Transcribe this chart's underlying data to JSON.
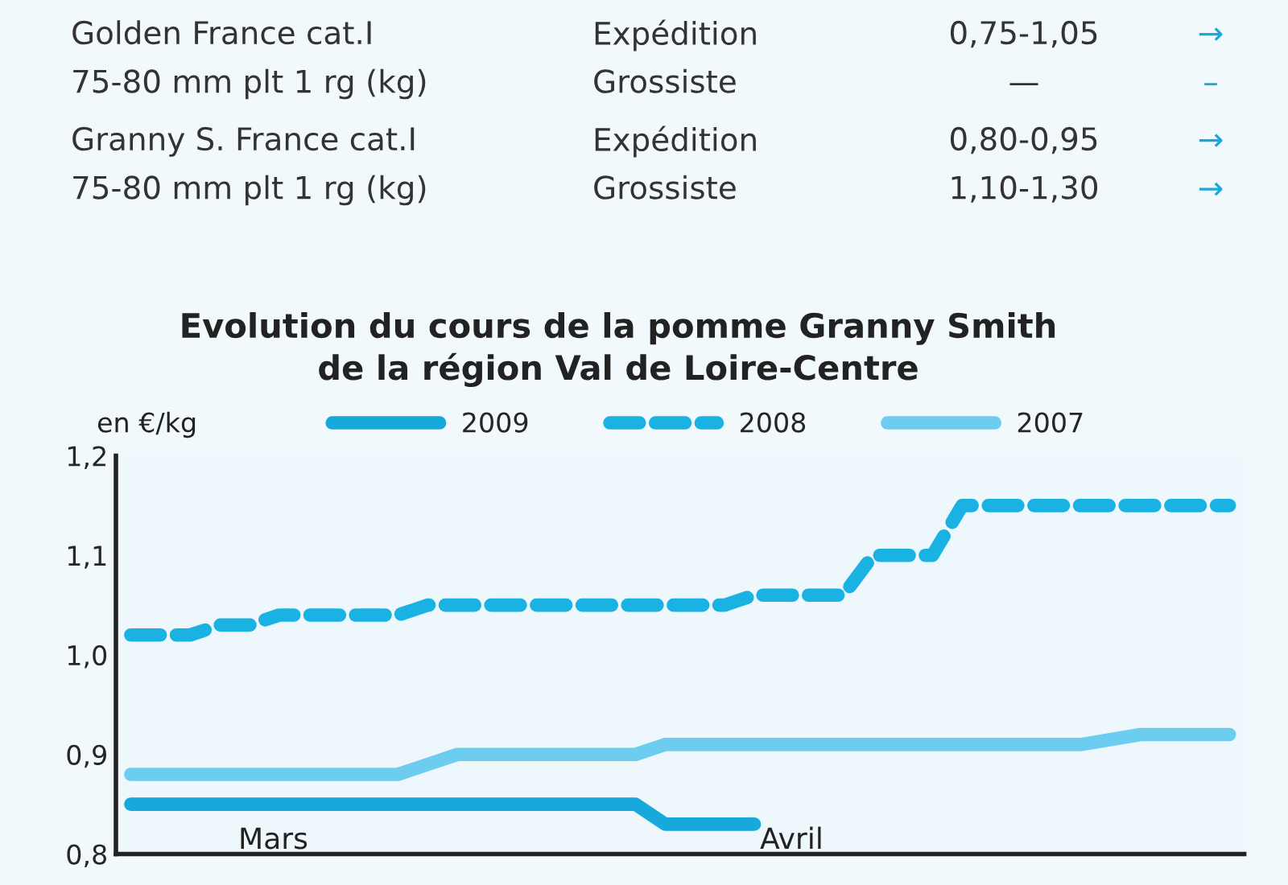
{
  "chart_data": {
    "type": "line",
    "title": "Evolution du cours de la pomme Granny Smith\nde la région Val de Loire-Centre",
    "ylabel": "en €/kg",
    "categories": [
      null,
      null,
      null,
      null,
      null,
      null,
      null,
      null,
      null,
      null,
      null,
      null,
      null,
      null,
      null,
      null,
      null,
      null,
      null,
      null,
      null,
      null,
      null,
      null,
      null,
      null,
      null,
      null,
      null,
      null,
      null,
      null,
      null,
      null,
      null,
      null,
      null,
      null
    ],
    "series": [
      {
        "name": "2009",
        "color": "#17a8dc",
        "line_style": "solid",
        "values": [
          0.85,
          0.85,
          0.85,
          0.85,
          0.85,
          0.85,
          0.85,
          0.85,
          0.85,
          0.85,
          0.85,
          0.85,
          0.85,
          0.85,
          0.85,
          0.85,
          0.85,
          0.85,
          0.83,
          0.83,
          0.83,
          0.83,
          null,
          null,
          null,
          null,
          null,
          null,
          null,
          null,
          null,
          null,
          null,
          null,
          null,
          null,
          null,
          null
        ]
      },
      {
        "name": "2008",
        "color": "#1ab2e2",
        "line_style": "dashed",
        "values": [
          1.02,
          1.02,
          1.02,
          1.03,
          1.03,
          1.04,
          1.04,
          1.04,
          1.04,
          1.04,
          1.05,
          1.05,
          1.05,
          1.05,
          1.05,
          1.05,
          1.05,
          1.05,
          1.05,
          1.05,
          1.05,
          1.06,
          1.06,
          1.06,
          1.06,
          1.1,
          1.1,
          1.1,
          1.15,
          1.15,
          1.15,
          1.15,
          1.15,
          1.15,
          1.15,
          1.15,
          1.15,
          1.15
        ]
      },
      {
        "name": "2007",
        "color": "#6dcdf0",
        "line_style": "solid",
        "values": [
          0.88,
          0.88,
          0.88,
          0.88,
          0.88,
          0.88,
          0.88,
          0.88,
          0.88,
          0.88,
          0.89,
          0.9,
          0.9,
          0.9,
          0.9,
          0.9,
          0.9,
          0.9,
          0.91,
          0.91,
          0.91,
          0.91,
          0.91,
          0.91,
          0.91,
          0.91,
          0.91,
          0.91,
          0.91,
          0.91,
          0.91,
          0.91,
          0.91,
          0.915,
          0.92,
          0.92,
          0.92,
          0.92
        ]
      }
    ],
    "ylim": [
      0.8,
      1.2
    ],
    "yticks": [
      {
        "value": 0.8,
        "label": "0,8"
      },
      {
        "value": 0.9,
        "label": "0,9"
      },
      {
        "value": 1.0,
        "label": "1,0"
      },
      {
        "value": 1.1,
        "label": "1,1"
      },
      {
        "value": 1.2,
        "label": "1,2"
      }
    ],
    "tick_labels": "y",
    "legend": "top",
    "grid": false,
    "annotations": [
      "Golden France cat.I",
      "Expédition",
      "0,75-1,05",
      "→",
      "75-80 mm plt 1 rg (kg)",
      "Grossiste",
      "—",
      "–",
      "Granny S. France cat.I",
      "Expédition",
      "0,80-0,95",
      "→",
      "75-80 mm plt 1 rg (kg)",
      "Grossiste",
      "1,10-1,30",
      "→",
      "Mars",
      "Avril"
    ]
  }
}
